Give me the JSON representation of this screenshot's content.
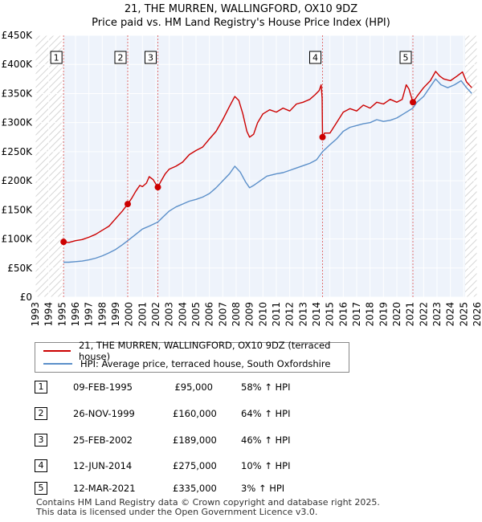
{
  "chart_data": {
    "type": "line",
    "title": "21, THE MURREN, WALLINGFORD, OX10 9DZ",
    "subtitle": "Price paid vs. HM Land Registry's House Price Index (HPI)",
    "xlabel": "",
    "ylabel": "",
    "xlim": [
      1993,
      2026
    ],
    "ylim": [
      0,
      450000
    ],
    "y_ticks": [
      0,
      50000,
      100000,
      150000,
      200000,
      250000,
      300000,
      350000,
      400000,
      450000
    ],
    "y_tick_labels": [
      "£0",
      "£50K",
      "£100K",
      "£150K",
      "£200K",
      "£250K",
      "£300K",
      "£350K",
      "£400K",
      "£450K"
    ],
    "x_ticks": [
      1993,
      1994,
      1995,
      1996,
      1997,
      1998,
      1999,
      2000,
      2001,
      2002,
      2003,
      2004,
      2005,
      2006,
      2007,
      2008,
      2009,
      2010,
      2011,
      2012,
      2013,
      2014,
      2015,
      2016,
      2017,
      2018,
      2019,
      2020,
      2021,
      2022,
      2023,
      2024,
      2025,
      2026
    ],
    "x_tick_labels": [
      "1993",
      "1994",
      "1995",
      "1996",
      "1997",
      "1998",
      "1999",
      "2000",
      "2001",
      "2002",
      "2003",
      "2004",
      "2005",
      "2006",
      "2007",
      "2008",
      "2009",
      "2010",
      "2011",
      "2012",
      "2013",
      "2014",
      "2015",
      "2016",
      "2017",
      "2018",
      "2019",
      "2020",
      "2021",
      "2022",
      "2023",
      "2024",
      "2025",
      "2026"
    ],
    "grid": true,
    "series": [
      {
        "name": "21, THE MURREN, WALLINGFORD, OX10 9DZ (terraced house)",
        "color": "#cc0000",
        "points": [
          [
            1995.1,
            95000
          ],
          [
            1995.5,
            94000
          ],
          [
            1996.0,
            97000
          ],
          [
            1996.5,
            99000
          ],
          [
            1997.0,
            103000
          ],
          [
            1997.5,
            108000
          ],
          [
            1998.0,
            115000
          ],
          [
            1998.5,
            122000
          ],
          [
            1999.0,
            135000
          ],
          [
            1999.5,
            148000
          ],
          [
            1999.9,
            160000
          ],
          [
            2000.2,
            170000
          ],
          [
            2000.5,
            182000
          ],
          [
            2000.8,
            192000
          ],
          [
            2001.0,
            190000
          ],
          [
            2001.3,
            196000
          ],
          [
            2001.5,
            207000
          ],
          [
            2001.8,
            202000
          ],
          [
            2002.15,
            189000
          ],
          [
            2002.4,
            200000
          ],
          [
            2002.7,
            212000
          ],
          [
            2003.0,
            220000
          ],
          [
            2003.5,
            225000
          ],
          [
            2004.0,
            232000
          ],
          [
            2004.5,
            245000
          ],
          [
            2005.0,
            252000
          ],
          [
            2005.5,
            258000
          ],
          [
            2006.0,
            272000
          ],
          [
            2006.5,
            285000
          ],
          [
            2007.0,
            305000
          ],
          [
            2007.5,
            328000
          ],
          [
            2007.9,
            345000
          ],
          [
            2008.2,
            338000
          ],
          [
            2008.5,
            315000
          ],
          [
            2008.8,
            285000
          ],
          [
            2009.0,
            275000
          ],
          [
            2009.3,
            280000
          ],
          [
            2009.6,
            300000
          ],
          [
            2010.0,
            315000
          ],
          [
            2010.5,
            322000
          ],
          [
            2011.0,
            318000
          ],
          [
            2011.5,
            325000
          ],
          [
            2012.0,
            320000
          ],
          [
            2012.5,
            332000
          ],
          [
            2013.0,
            335000
          ],
          [
            2013.5,
            340000
          ],
          [
            2013.9,
            348000
          ],
          [
            2014.2,
            355000
          ],
          [
            2014.35,
            365000
          ],
          [
            2014.42,
            342000
          ],
          [
            2014.45,
            275000
          ],
          [
            2014.6,
            282000
          ],
          [
            2015.0,
            282000
          ],
          [
            2015.5,
            300000
          ],
          [
            2016.0,
            318000
          ],
          [
            2016.5,
            324000
          ],
          [
            2017.0,
            320000
          ],
          [
            2017.5,
            330000
          ],
          [
            2018.0,
            325000
          ],
          [
            2018.5,
            335000
          ],
          [
            2019.0,
            332000
          ],
          [
            2019.5,
            340000
          ],
          [
            2020.0,
            335000
          ],
          [
            2020.4,
            340000
          ],
          [
            2020.7,
            365000
          ],
          [
            2020.9,
            358000
          ],
          [
            2021.2,
            335000
          ],
          [
            2021.5,
            345000
          ],
          [
            2022.0,
            360000
          ],
          [
            2022.5,
            372000
          ],
          [
            2022.9,
            388000
          ],
          [
            2023.2,
            380000
          ],
          [
            2023.5,
            375000
          ],
          [
            2024.0,
            372000
          ],
          [
            2024.5,
            380000
          ],
          [
            2024.9,
            387000
          ],
          [
            2025.2,
            370000
          ],
          [
            2025.6,
            360000
          ]
        ]
      },
      {
        "name": "HPI: Average price, terraced house, South Oxfordshire",
        "color": "#5b8fc9",
        "points": [
          [
            1995.1,
            60000
          ],
          [
            1995.5,
            60000
          ],
          [
            1996.0,
            61000
          ],
          [
            1996.5,
            62000
          ],
          [
            1997.0,
            64000
          ],
          [
            1997.5,
            67000
          ],
          [
            1998.0,
            71000
          ],
          [
            1998.5,
            76000
          ],
          [
            1999.0,
            82000
          ],
          [
            1999.5,
            90000
          ],
          [
            1999.9,
            97000
          ],
          [
            2000.5,
            108000
          ],
          [
            2001.0,
            117000
          ],
          [
            2001.5,
            122000
          ],
          [
            2002.15,
            129000
          ],
          [
            2002.5,
            137000
          ],
          [
            2003.0,
            148000
          ],
          [
            2003.5,
            155000
          ],
          [
            2004.0,
            160000
          ],
          [
            2004.5,
            165000
          ],
          [
            2005.0,
            168000
          ],
          [
            2005.5,
            172000
          ],
          [
            2006.0,
            178000
          ],
          [
            2006.5,
            188000
          ],
          [
            2007.0,
            200000
          ],
          [
            2007.5,
            212000
          ],
          [
            2007.9,
            225000
          ],
          [
            2008.3,
            215000
          ],
          [
            2008.7,
            198000
          ],
          [
            2009.0,
            188000
          ],
          [
            2009.3,
            192000
          ],
          [
            2009.8,
            200000
          ],
          [
            2010.3,
            208000
          ],
          [
            2011.0,
            212000
          ],
          [
            2011.5,
            214000
          ],
          [
            2012.0,
            218000
          ],
          [
            2012.5,
            222000
          ],
          [
            2013.0,
            226000
          ],
          [
            2013.5,
            230000
          ],
          [
            2014.0,
            236000
          ],
          [
            2014.45,
            250000
          ],
          [
            2015.0,
            262000
          ],
          [
            2015.5,
            272000
          ],
          [
            2016.0,
            285000
          ],
          [
            2016.5,
            292000
          ],
          [
            2017.0,
            295000
          ],
          [
            2017.5,
            298000
          ],
          [
            2018.0,
            300000
          ],
          [
            2018.5,
            305000
          ],
          [
            2019.0,
            302000
          ],
          [
            2019.5,
            304000
          ],
          [
            2020.0,
            308000
          ],
          [
            2020.5,
            315000
          ],
          [
            2021.2,
            325000
          ],
          [
            2021.5,
            335000
          ],
          [
            2022.0,
            345000
          ],
          [
            2022.5,
            362000
          ],
          [
            2022.9,
            375000
          ],
          [
            2023.3,
            365000
          ],
          [
            2023.8,
            360000
          ],
          [
            2024.3,
            365000
          ],
          [
            2024.8,
            372000
          ],
          [
            2025.2,
            360000
          ],
          [
            2025.6,
            350000
          ]
        ]
      }
    ],
    "sales": [
      {
        "label": "1",
        "x": 1995.11,
        "price": 95000
      },
      {
        "label": "2",
        "x": 1999.9,
        "price": 160000
      },
      {
        "label": "3",
        "x": 2002.15,
        "price": 189000
      },
      {
        "label": "4",
        "x": 2014.45,
        "price": 275000
      },
      {
        "label": "5",
        "x": 2021.2,
        "price": 335000
      }
    ],
    "shaded_ranges": [
      [
        1993,
        1995.11
      ],
      [
        2025.1,
        2026
      ]
    ]
  },
  "legend": {
    "property_label": "21, THE MURREN, WALLINGFORD, OX10 9DZ (terraced house)",
    "hpi_label": "HPI: Average price, terraced house, South Oxfordshire",
    "property_color": "#cc0000",
    "hpi_color": "#5b8fc9"
  },
  "sales_table": [
    {
      "num": "1",
      "date": "09-FEB-1995",
      "price": "£95,000",
      "hpi": "58% ↑ HPI"
    },
    {
      "num": "2",
      "date": "26-NOV-1999",
      "price": "£160,000",
      "hpi": "64% ↑ HPI"
    },
    {
      "num": "3",
      "date": "25-FEB-2002",
      "price": "£189,000",
      "hpi": "46% ↑ HPI"
    },
    {
      "num": "4",
      "date": "12-JUN-2014",
      "price": "£275,000",
      "hpi": "10% ↑ HPI"
    },
    {
      "num": "5",
      "date": "12-MAR-2021",
      "price": "£335,000",
      "hpi": "3% ↑ HPI"
    }
  ],
  "footer": {
    "line1": "Contains HM Land Registry data © Crown copyright and database right 2025.",
    "line2": "This data is licensed under the Open Government Licence v3.0."
  }
}
